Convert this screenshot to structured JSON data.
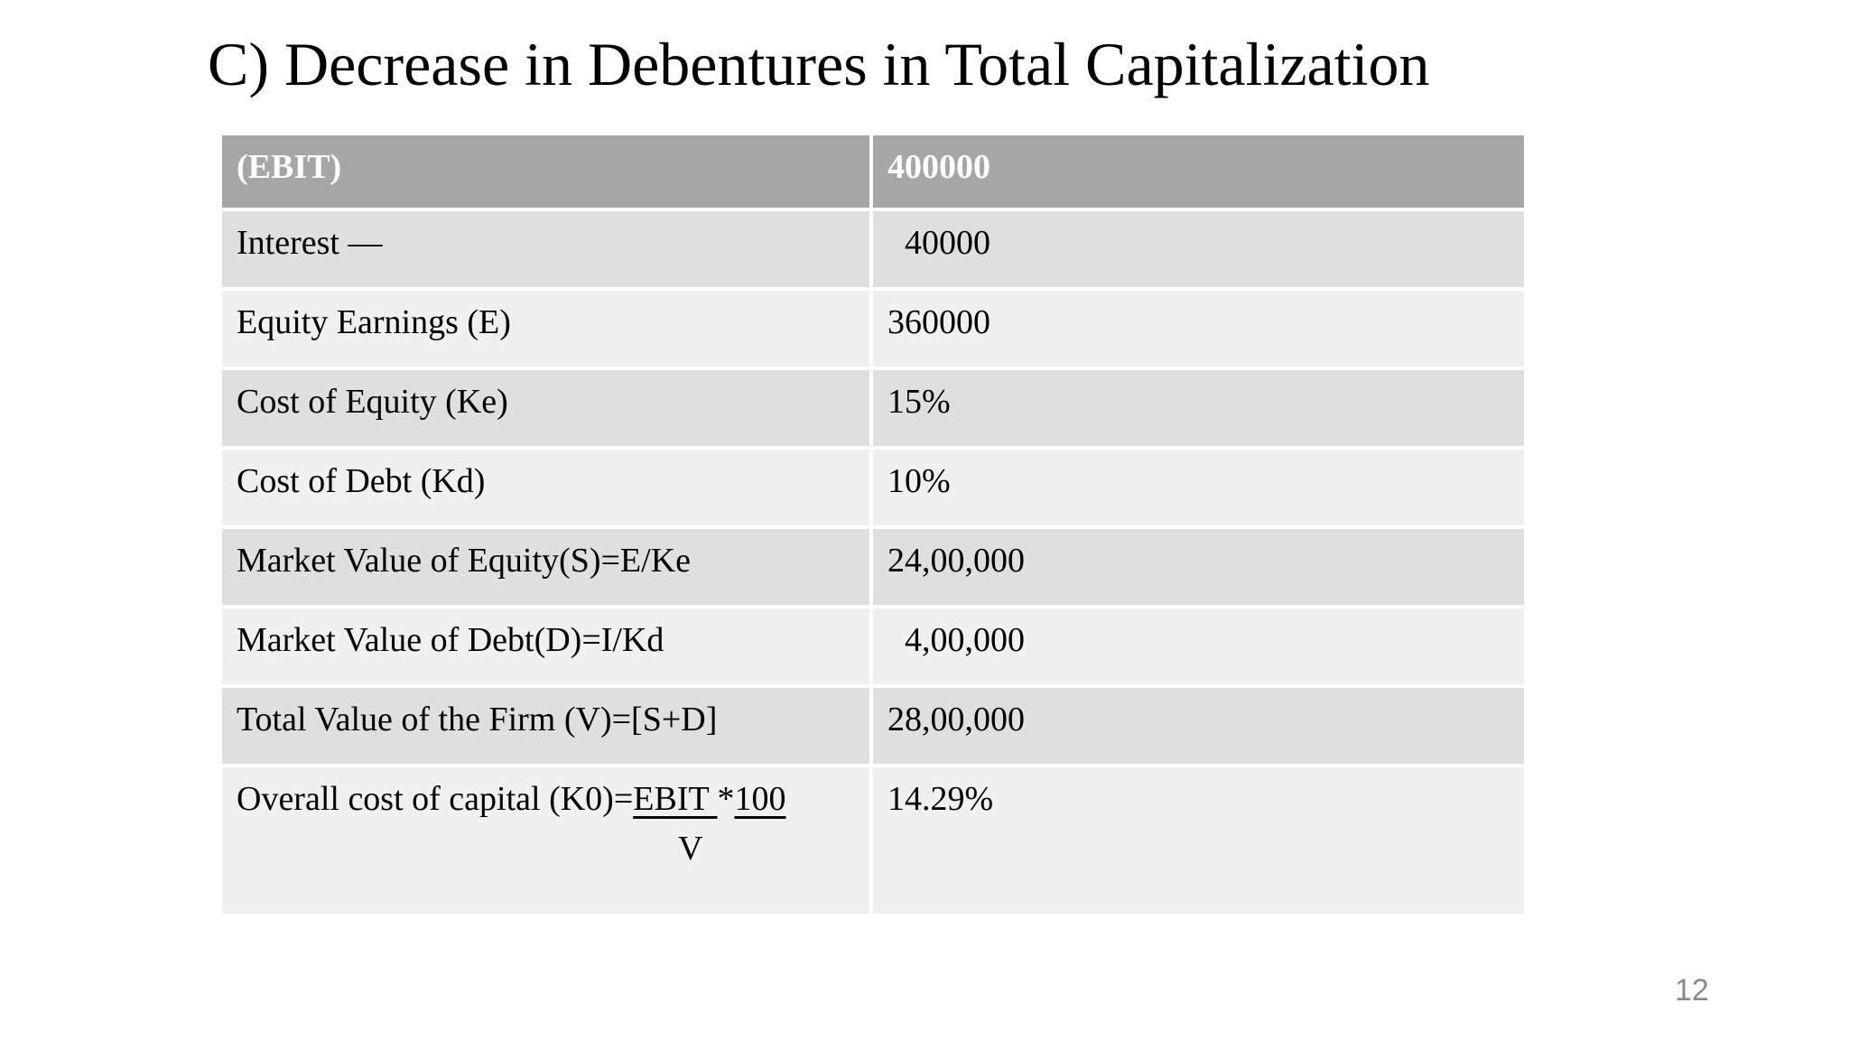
{
  "slide": {
    "title": "C) Decrease in Debentures in Total Capitalization",
    "page_number": "12"
  },
  "table": {
    "header": {
      "label": "(EBIT)",
      "value": "400000"
    },
    "rows": [
      {
        "label": "Interest —",
        "value": "  40000"
      },
      {
        "label": "Equity Earnings (E)",
        "value": "360000"
      },
      {
        "label": "Cost of Equity (Ke)",
        "value": "15%"
      },
      {
        "label": "Cost of Debt (Kd)",
        "value": "10%"
      },
      {
        "label": "Market Value of Equity(S)=E/Ke",
        "value": "24,00,000"
      },
      {
        "label": "Market Value of Debt(D)=I/Kd",
        "value": "  4,00,000"
      },
      {
        "label": "Total Value of the Firm (V)=[S+D]",
        "value": "28,00,000"
      },
      {
        "label_formula": {
          "prefix": "Overall cost of capital (K0)=",
          "numerator_1": "EBIT ",
          "operator": "*",
          "numerator_2": "100",
          "denominator": "V"
        },
        "value": "14.29%"
      }
    ],
    "colors": {
      "header_bg": "#A6A6A6",
      "header_text": "#FFFFFF",
      "row_dark_bg": "#DFDFDF",
      "row_light_bg": "#F0F0F0"
    }
  }
}
